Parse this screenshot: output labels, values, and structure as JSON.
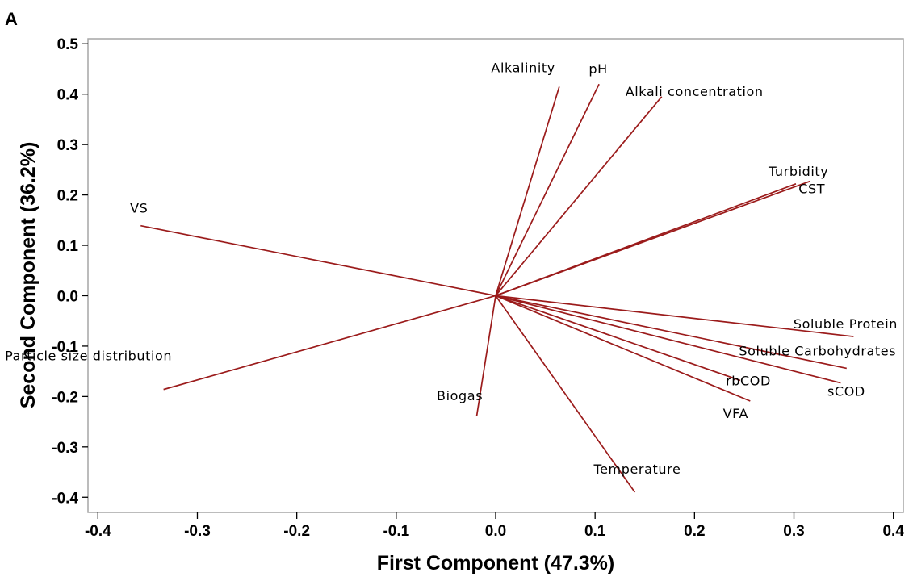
{
  "panel_label": "A",
  "colors": {
    "vector": "#9b1b1b",
    "frame": "#a6a6a6",
    "background": "#ffffff"
  },
  "chart_data": {
    "type": "biplot",
    "xlabel": "First Component (47.3%)",
    "ylabel": "Second Component (36.2%)",
    "xlim": [
      -0.41,
      0.41
    ],
    "ylim": [
      -0.43,
      0.51
    ],
    "xticks": [
      -0.4,
      -0.3,
      -0.2,
      -0.1,
      0.0,
      0.1,
      0.2,
      0.3,
      0.4
    ],
    "xtick_labels": [
      "-0.4",
      "-0.3",
      "-0.2",
      "-0.1",
      "0.0",
      "0.1",
      "0.2",
      "0.3",
      "0.4"
    ],
    "yticks": [
      -0.4,
      -0.3,
      -0.2,
      -0.1,
      0.0,
      0.1,
      0.2,
      0.3,
      0.4,
      0.5
    ],
    "ytick_labels": [
      "-0.4",
      "-0.3",
      "-0.2",
      "-0.1",
      "0.0",
      "0.1",
      "0.2",
      "0.3",
      "0.4",
      "0.5"
    ],
    "grid": false,
    "vectors": [
      {
        "label": "Alkalinity",
        "x": 0.064,
        "y": 0.415
      },
      {
        "label": "pH",
        "x": 0.104,
        "y": 0.42
      },
      {
        "label": "Alkali concentration",
        "x": 0.167,
        "y": 0.395
      },
      {
        "label": "Turbidity",
        "x": 0.302,
        "y": 0.222
      },
      {
        "label": "CST",
        "x": 0.316,
        "y": 0.227
      },
      {
        "label": "VS",
        "x": -0.357,
        "y": 0.139
      },
      {
        "label": "Soluble Protein",
        "x": 0.36,
        "y": -0.081
      },
      {
        "label": "Soluble Carbohydrates",
        "x": 0.353,
        "y": -0.144
      },
      {
        "label": "sCOD",
        "x": 0.347,
        "y": -0.173
      },
      {
        "label": "rbCOD",
        "x": 0.246,
        "y": -0.168
      },
      {
        "label": "VFA",
        "x": 0.256,
        "y": -0.209
      },
      {
        "label": "Particle size distribution",
        "x": -0.334,
        "y": -0.186
      },
      {
        "label": "Biogas",
        "x": -0.019,
        "y": -0.238
      },
      {
        "label": "Temperature",
        "x": 0.14,
        "y": -0.39
      }
    ]
  }
}
